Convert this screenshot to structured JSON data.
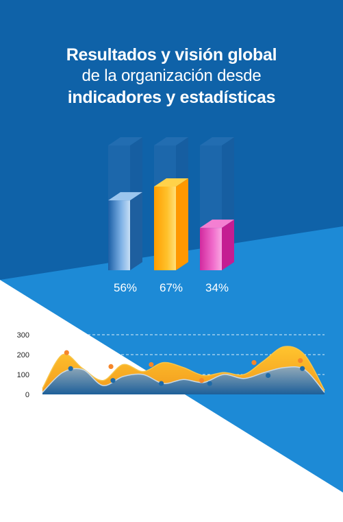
{
  "headline": {
    "line1": "Resultados y visión global",
    "line2": "de la organización desde",
    "line3": "indicadores y estadísticas"
  },
  "colors": {
    "background_dark": "#0f62a8",
    "background_light": "#1d8ad6",
    "white": "#ffffff",
    "bar_blue": "#3b7fc4",
    "bar_orange": "#ffb000",
    "bar_pink": "#e63fb5",
    "area_orange": "#f7a823",
    "area_blue": "#5f87a8",
    "dot_orange": "#f5862a",
    "dot_blue": "#1e6aa8"
  },
  "chart_data": [
    {
      "type": "bar",
      "categories": [
        "56%",
        "67%",
        "34%"
      ],
      "values": [
        56,
        67,
        34
      ],
      "colors": [
        "#3b7fc4",
        "#ffb000",
        "#e63fb5"
      ],
      "ylim": [
        0,
        100
      ],
      "title": "",
      "xlabel": "",
      "ylabel": ""
    },
    {
      "type": "area",
      "yticks": [
        "0",
        "100",
        "200",
        "300"
      ],
      "ylim": [
        0,
        300
      ],
      "grid": true,
      "series": [
        {
          "color": "#f7a823",
          "x": [
            0,
            1,
            2,
            3,
            4,
            5,
            6,
            7,
            8,
            9,
            10,
            11,
            12,
            13,
            14
          ],
          "values": [
            30,
            200,
            130,
            70,
            150,
            115,
            160,
            135,
            95,
            110,
            100,
            170,
            240,
            200,
            20
          ],
          "markers_x": [
            1.2,
            3.4,
            5.4,
            7.9,
            10.5,
            12.8
          ],
          "markers_y": [
            210,
            140,
            150,
            70,
            160,
            170
          ]
        },
        {
          "color": "#5f87a8",
          "x": [
            0,
            1,
            2,
            3,
            4,
            5,
            6,
            7,
            8,
            9,
            10,
            11,
            12,
            13,
            14
          ],
          "values": [
            10,
            110,
            125,
            45,
            90,
            100,
            55,
            75,
            60,
            100,
            80,
            110,
            135,
            125,
            10
          ],
          "markers_x": [
            1.4,
            3.5,
            5.9,
            8.3,
            11.2,
            12.9
          ],
          "markers_y": [
            130,
            70,
            55,
            55,
            95,
            130
          ]
        }
      ]
    }
  ]
}
